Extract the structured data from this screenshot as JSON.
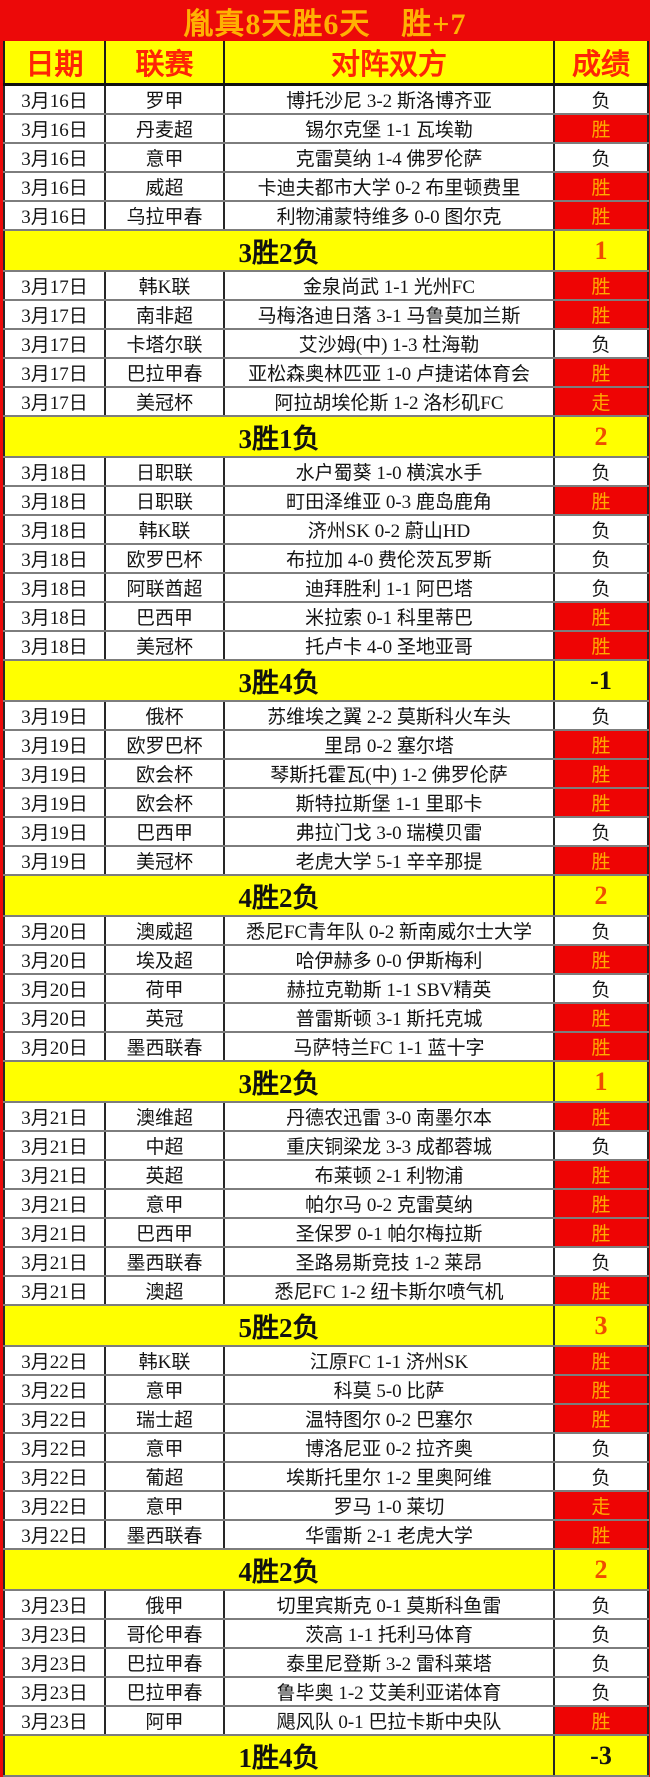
{
  "title": "胤真8天胜6天　胜+7",
  "header": {
    "date": "日期",
    "league": "联赛",
    "matchup": "对阵双方",
    "result": "成绩"
  },
  "colors": {
    "table_red": "#ee0404",
    "band_yellow": "#ffff00",
    "title_text": "#ffb102",
    "header_text": "#fe2506",
    "win_text": "#ffaa00",
    "positive_score": "#ef4e00",
    "negative_score": "#141414"
  },
  "groups": [
    {
      "rows": [
        {
          "date": "3月16日",
          "league": "罗甲",
          "match": "博托沙尼 3-2 斯洛博齐亚",
          "result": "负",
          "hl": false
        },
        {
          "date": "3月16日",
          "league": "丹麦超",
          "match": "锡尔克堡 1-1 瓦埃勒",
          "result": "胜",
          "hl": true
        },
        {
          "date": "3月16日",
          "league": "意甲",
          "match": "克雷莫纳 1-4 佛罗伦萨",
          "result": "负",
          "hl": false
        },
        {
          "date": "3月16日",
          "league": "威超",
          "match": "卡迪夫都市大学 0-2 布里顿费里",
          "result": "胜",
          "hl": true
        },
        {
          "date": "3月16日",
          "league": "乌拉甲春",
          "match": "利物浦蒙特维多 0-0 图尔克",
          "result": "胜",
          "hl": true
        }
      ],
      "summary": {
        "label": "3胜2负",
        "score": "1"
      }
    },
    {
      "rows": [
        {
          "date": "3月17日",
          "league": "韩K联",
          "match": "金泉尚武 1-1 光州FC",
          "result": "胜",
          "hl": true
        },
        {
          "date": "3月17日",
          "league": "南非超",
          "match": "马梅洛迪日落 3-1 马鲁莫加兰斯",
          "result": "胜",
          "hl": true
        },
        {
          "date": "3月17日",
          "league": "卡塔尔联",
          "match": "艾沙姆(中) 1-3 杜海勒",
          "result": "负",
          "hl": false
        },
        {
          "date": "3月17日",
          "league": "巴拉甲春",
          "match": "亚松森奥林匹亚 1-0 卢捷诺体育会",
          "result": "胜",
          "hl": true
        },
        {
          "date": "3月17日",
          "league": "美冠杯",
          "match": "阿拉胡埃伦斯 1-2 洛杉矶FC",
          "result": "走",
          "hl": true
        }
      ],
      "summary": {
        "label": "3胜1负",
        "score": "2"
      }
    },
    {
      "rows": [
        {
          "date": "3月18日",
          "league": "日职联",
          "match": "水户蜀葵 1-0 横滨水手",
          "result": "负",
          "hl": false
        },
        {
          "date": "3月18日",
          "league": "日职联",
          "match": "町田泽维亚 0-3 鹿岛鹿角",
          "result": "胜",
          "hl": true
        },
        {
          "date": "3月18日",
          "league": "韩K联",
          "match": "济州SK 0-2 蔚山HD",
          "result": "负",
          "hl": false
        },
        {
          "date": "3月18日",
          "league": "欧罗巴杯",
          "match": "布拉加 4-0 费伦茨瓦罗斯",
          "result": "负",
          "hl": false
        },
        {
          "date": "3月18日",
          "league": "阿联酋超",
          "match": "迪拜胜利 1-1 阿巴塔",
          "result": "负",
          "hl": false
        },
        {
          "date": "3月18日",
          "league": "巴西甲",
          "match": "米拉索 0-1 科里蒂巴",
          "result": "胜",
          "hl": true
        },
        {
          "date": "3月18日",
          "league": "美冠杯",
          "match": "托卢卡 4-0 圣地亚哥",
          "result": "胜",
          "hl": true
        }
      ],
      "summary": {
        "label": "3胜4负",
        "score": "-1"
      }
    },
    {
      "rows": [
        {
          "date": "3月19日",
          "league": "俄杯",
          "match": "苏维埃之翼 2-2 莫斯科火车头",
          "result": "负",
          "hl": false
        },
        {
          "date": "3月19日",
          "league": "欧罗巴杯",
          "match": "里昂 0-2 塞尔塔",
          "result": "胜",
          "hl": true
        },
        {
          "date": "3月19日",
          "league": "欧会杯",
          "match": "琴斯托霍瓦(中) 1-2 佛罗伦萨",
          "result": "胜",
          "hl": true
        },
        {
          "date": "3月19日",
          "league": "欧会杯",
          "match": "斯特拉斯堡 1-1 里耶卡",
          "result": "胜",
          "hl": true
        },
        {
          "date": "3月19日",
          "league": "巴西甲",
          "match": "弗拉门戈 3-0 瑞模贝雷",
          "result": "负",
          "hl": false
        },
        {
          "date": "3月19日",
          "league": "美冠杯",
          "match": "老虎大学 5-1 辛辛那提",
          "result": "胜",
          "hl": true
        }
      ],
      "summary": {
        "label": "4胜2负",
        "score": "2"
      }
    },
    {
      "rows": [
        {
          "date": "3月20日",
          "league": "澳威超",
          "match": "悉尼FC青年队 0-2 新南威尔士大学",
          "result": "负",
          "hl": false
        },
        {
          "date": "3月20日",
          "league": "埃及超",
          "match": "哈伊赫多 0-0 伊斯梅利",
          "result": "胜",
          "hl": true
        },
        {
          "date": "3月20日",
          "league": "荷甲",
          "match": "赫拉克勒斯 1-1 SBV精英",
          "result": "负",
          "hl": false
        },
        {
          "date": "3月20日",
          "league": "英冠",
          "match": "普雷斯顿 3-1 斯托克城",
          "result": "胜",
          "hl": true
        },
        {
          "date": "3月20日",
          "league": "墨西联春",
          "match": "马萨特兰FC 1-1 蓝十字",
          "result": "胜",
          "hl": true
        }
      ],
      "summary": {
        "label": "3胜2负",
        "score": "1"
      }
    },
    {
      "rows": [
        {
          "date": "3月21日",
          "league": "澳维超",
          "match": "丹德农迅雷 3-0 南墨尔本",
          "result": "胜",
          "hl": true
        },
        {
          "date": "3月21日",
          "league": "中超",
          "match": "重庆铜梁龙 3-3 成都蓉城",
          "result": "负",
          "hl": false
        },
        {
          "date": "3月21日",
          "league": "英超",
          "match": "布莱顿 2-1 利物浦",
          "result": "胜",
          "hl": true
        },
        {
          "date": "3月21日",
          "league": "意甲",
          "match": "帕尔马 0-2 克雷莫纳",
          "result": "胜",
          "hl": true
        },
        {
          "date": "3月21日",
          "league": "巴西甲",
          "match": "圣保罗 0-1 帕尔梅拉斯",
          "result": "胜",
          "hl": true
        },
        {
          "date": "3月21日",
          "league": "墨西联春",
          "match": "圣路易斯竞技 1-2 莱昂",
          "result": "负",
          "hl": false
        },
        {
          "date": "3月21日",
          "league": "澳超",
          "match": "悉尼FC 1-2 纽卡斯尔喷气机",
          "result": "胜",
          "hl": true
        }
      ],
      "summary": {
        "label": "5胜2负",
        "score": "3"
      }
    },
    {
      "rows": [
        {
          "date": "3月22日",
          "league": "韩K联",
          "match": "江原FC 1-1 济州SK",
          "result": "胜",
          "hl": true
        },
        {
          "date": "3月22日",
          "league": "意甲",
          "match": "科莫 5-0 比萨",
          "result": "胜",
          "hl": true
        },
        {
          "date": "3月22日",
          "league": "瑞士超",
          "match": "温特图尔 0-2 巴塞尔",
          "result": "胜",
          "hl": true
        },
        {
          "date": "3月22日",
          "league": "意甲",
          "match": "博洛尼亚 0-2 拉齐奥",
          "result": "负",
          "hl": false
        },
        {
          "date": "3月22日",
          "league": "葡超",
          "match": "埃斯托里尔 1-2 里奥阿维",
          "result": "负",
          "hl": false
        },
        {
          "date": "3月22日",
          "league": "意甲",
          "match": "罗马 1-0 莱切",
          "result": "走",
          "hl": true
        },
        {
          "date": "3月22日",
          "league": "墨西联春",
          "match": "华雷斯 2-1 老虎大学",
          "result": "胜",
          "hl": true
        }
      ],
      "summary": {
        "label": "4胜2负",
        "score": "2"
      }
    },
    {
      "rows": [
        {
          "date": "3月23日",
          "league": "俄甲",
          "match": "切里宾斯克 0-1 莫斯科鱼雷",
          "result": "负",
          "hl": false
        },
        {
          "date": "3月23日",
          "league": "哥伦甲春",
          "match": "茨高 1-1 托利马体育",
          "result": "负",
          "hl": false
        },
        {
          "date": "3月23日",
          "league": "巴拉甲春",
          "match": "泰里尼登斯 3-2 雷科莱塔",
          "result": "负",
          "hl": false
        },
        {
          "date": "3月23日",
          "league": "巴拉甲春",
          "match": "鲁毕奥 1-2 艾美利亚诺体育",
          "result": "负",
          "hl": false
        },
        {
          "date": "3月23日",
          "league": "阿甲",
          "match": "飓风队 0-1 巴拉卡斯中央队",
          "result": "胜",
          "hl": true
        }
      ],
      "summary": {
        "label": "1胜4负",
        "score": "-3"
      }
    }
  ]
}
